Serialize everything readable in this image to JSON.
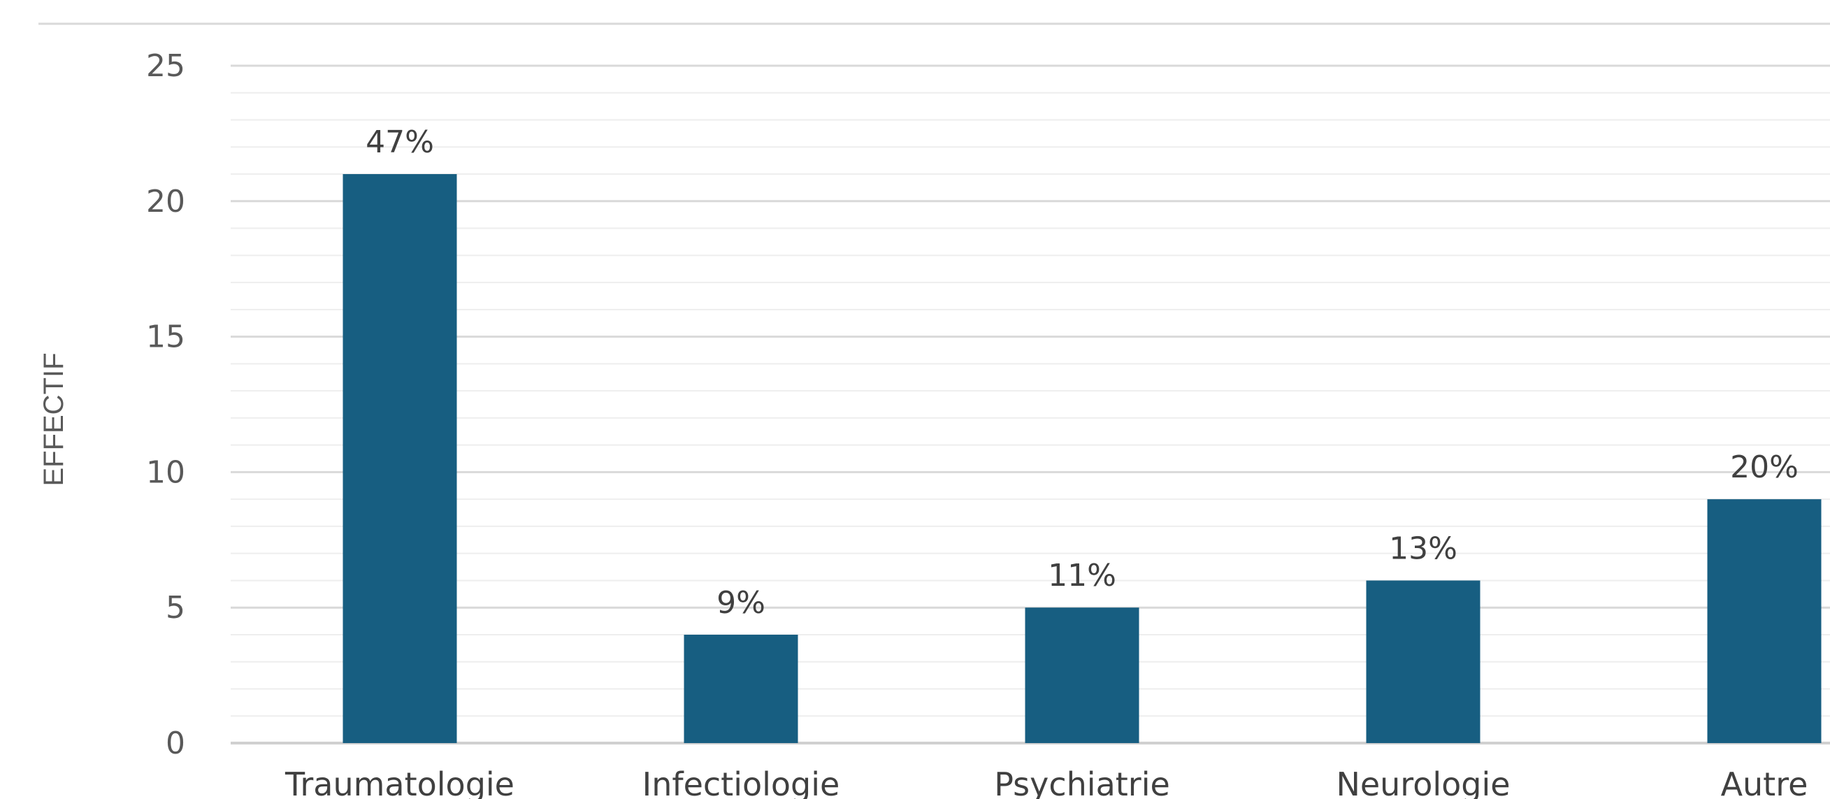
{
  "chart_data": {
    "type": "bar",
    "title": "",
    "xlabel": "",
    "ylabel": "EFFECTIF",
    "categories": [
      "Traumatologie",
      "Infectiologie",
      "Psychiatrie",
      "Neurologie",
      "Autre"
    ],
    "values": [
      21,
      4,
      5,
      6,
      9
    ],
    "data_labels": [
      "47%",
      "9%",
      "11%",
      "13%",
      "20%"
    ],
    "ylim": [
      0,
      25
    ],
    "yticks": [
      0,
      5,
      10,
      15,
      20,
      25
    ],
    "grid": true,
    "legend": "none",
    "colors": {
      "bar": "#175e81",
      "major_grid": "#d9d9d9",
      "minor_grid": "#eeeeee",
      "axis_line": "#d0d0d0"
    }
  }
}
